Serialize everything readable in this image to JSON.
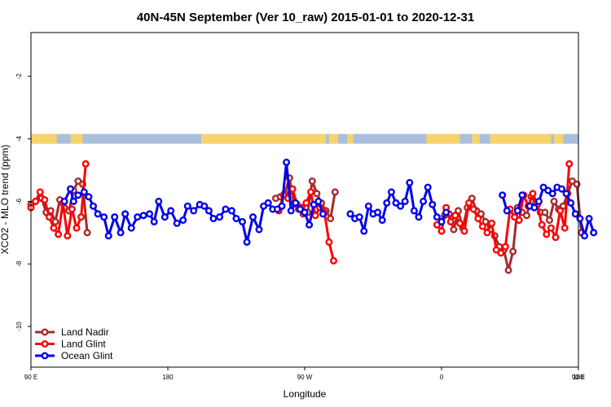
{
  "chart_data": {
    "type": "line",
    "title": "40N-45N September (Ver 10_raw)   2015-01-01 to 2020-12-31",
    "xlabel": "Longitude",
    "ylabel": "XCO2 - MLO trend (ppm)",
    "xlim": [
      90,
      450
    ],
    "ylim": [
      -11.3,
      -0.6
    ],
    "x_ticks": [
      {
        "value": 90,
        "label": "90 E"
      },
      {
        "value": 180,
        "label": "180"
      },
      {
        "value": 270,
        "label": "90 W"
      },
      {
        "value": 360,
        "label": "0"
      },
      {
        "value": 450,
        "label": "90 E"
      },
      {
        "value": 540,
        "label": "180"
      }
    ],
    "y_ticks": [
      {
        "value": -2,
        "label": "-2"
      },
      {
        "value": -4,
        "label": "-4"
      },
      {
        "value": -6,
        "label": "-6"
      },
      {
        "value": -8,
        "label": "-8"
      },
      {
        "value": -10,
        "label": "-10"
      }
    ],
    "grid": false,
    "legend_position": "bottom-left",
    "land_ocean_band": {
      "y_value": -4,
      "land_color": "#f7d46b",
      "ocean_color": "#a9bfdd",
      "land_segments": [
        [
          90,
          107
        ],
        [
          116,
          124
        ],
        [
          202,
          284
        ],
        [
          286,
          292
        ],
        [
          298,
          302
        ],
        [
          350,
          372
        ],
        [
          380,
          385
        ],
        [
          392,
          432
        ],
        [
          434,
          440
        ]
      ]
    },
    "series": [
      {
        "name": "Land Nadir",
        "color": "#a52a2a",
        "segments": [
          [
            [
              90,
              -6.1
            ],
            [
              93,
              -6.0
            ],
            [
              97,
              -5.9
            ],
            [
              100,
              -6.35
            ],
            [
              103,
              -6.3
            ],
            [
              106,
              -6.65
            ],
            [
              109,
              -5.95
            ],
            [
              112,
              -6.2
            ],
            [
              115,
              -6.3
            ],
            [
              118,
              -5.65
            ],
            [
              121,
              -5.35
            ],
            [
              124,
              -5.45
            ],
            [
              127,
              -7.0
            ]
          ],
          [
            [
              251,
              -5.9
            ],
            [
              254,
              -5.85
            ],
            [
              257,
              -5.75
            ],
            [
              260,
              -5.25
            ],
            [
              263,
              -6.05
            ],
            [
              266,
              -6.25
            ],
            [
              269,
              -6.4
            ],
            [
              272,
              -6.35
            ],
            [
              275,
              -5.35
            ],
            [
              278,
              -5.75
            ],
            [
              281,
              -6.05
            ],
            [
              284,
              -6.3
            ],
            [
              287,
              -6.55
            ],
            [
              290,
              -5.7
            ]
          ],
          [
            [
              362,
              -6.45
            ],
            [
              365,
              -6.4
            ],
            [
              368,
              -6.9
            ],
            [
              371,
              -6.3
            ],
            [
              374,
              -6.85
            ],
            [
              377,
              -6.2
            ],
            [
              380,
              -5.9
            ],
            [
              383,
              -6.3
            ],
            [
              386,
              -6.4
            ],
            [
              389,
              -6.65
            ],
            [
              392,
              -6.9
            ],
            [
              395,
              -7.1
            ],
            [
              398,
              -7.45
            ],
            [
              401,
              -7.55
            ],
            [
              404,
              -8.2
            ],
            [
              407,
              -7.6
            ],
            [
              410,
              -6.2
            ],
            [
              413,
              -6.35
            ],
            [
              416,
              -6.45
            ],
            [
              419,
              -5.85
            ],
            [
              422,
              -6.05
            ],
            [
              425,
              -6.35
            ],
            [
              428,
              -6.35
            ],
            [
              431,
              -6.6
            ],
            [
              434,
              -6.0
            ],
            [
              437,
              -6.25
            ],
            [
              440,
              -6.15
            ],
            [
              443,
              -5.75
            ],
            [
              446,
              -5.35
            ],
            [
              449,
              -5.45
            ],
            [
              452,
              -7.0
            ]
          ]
        ]
      },
      {
        "name": "Land Glint",
        "color": "#ff0000",
        "segments": [
          [
            [
              90,
              -6.2
            ],
            [
              93,
              -6.0
            ],
            [
              96,
              -5.7
            ],
            [
              99,
              -5.95
            ],
            [
              102,
              -6.5
            ],
            [
              105,
              -6.85
            ],
            [
              108,
              -7.05
            ],
            [
              111,
              -6.05
            ],
            [
              114,
              -7.1
            ],
            [
              117,
              -6.25
            ],
            [
              120,
              -6.85
            ],
            [
              123,
              -6.5
            ],
            [
              126,
              -4.8
            ]
          ],
          [
            [
              253,
              -6.3
            ],
            [
              256,
              -5.8
            ],
            [
              259,
              -5.9
            ],
            [
              262,
              -5.6
            ],
            [
              265,
              -6.1
            ],
            [
              268,
              -6.2
            ],
            [
              271,
              -6.05
            ],
            [
              274,
              -5.7
            ],
            [
              277,
              -6.45
            ],
            [
              280,
              -6.2
            ],
            [
              283,
              -6.35
            ],
            [
              286,
              -7.3
            ],
            [
              289,
              -7.9
            ]
          ],
          [
            [
              357,
              -6.75
            ],
            [
              360,
              -6.95
            ],
            [
              363,
              -6.2
            ],
            [
              366,
              -6.65
            ],
            [
              369,
              -6.45
            ],
            [
              372,
              -6.7
            ],
            [
              375,
              -6.95
            ],
            [
              378,
              -6.05
            ],
            [
              381,
              -6.25
            ],
            [
              384,
              -6.55
            ],
            [
              387,
              -6.8
            ],
            [
              390,
              -7.0
            ],
            [
              393,
              -6.7
            ],
            [
              396,
              -7.55
            ],
            [
              399,
              -7.65
            ],
            [
              402,
              -7.45
            ],
            [
              405,
              -6.25
            ],
            [
              408,
              -6.5
            ],
            [
              411,
              -6.6
            ],
            [
              414,
              -5.8
            ],
            [
              417,
              -6.15
            ],
            [
              420,
              -5.75
            ],
            [
              423,
              -6.1
            ],
            [
              426,
              -6.75
            ],
            [
              429,
              -7.05
            ],
            [
              432,
              -6.85
            ],
            [
              435,
              -7.15
            ],
            [
              438,
              -6.3
            ],
            [
              441,
              -6.85
            ],
            [
              444,
              -4.8
            ]
          ]
        ]
      },
      {
        "name": "Ocean Glint",
        "color": "#0000ee",
        "segments": [
          [
            [
              112,
              -6.0
            ],
            [
              116,
              -5.6
            ],
            [
              118,
              -6.0
            ],
            [
              121,
              -5.8
            ],
            [
              125,
              -5.7
            ],
            [
              128,
              -5.85
            ],
            [
              131,
              -6.15
            ],
            [
              134,
              -6.4
            ],
            [
              138,
              -6.5
            ],
            [
              141,
              -7.1
            ],
            [
              145,
              -6.5
            ],
            [
              149,
              -7.0
            ],
            [
              152,
              -6.4
            ],
            [
              156,
              -6.85
            ],
            [
              160,
              -6.5
            ],
            [
              164,
              -6.45
            ],
            [
              168,
              -6.4
            ],
            [
              171,
              -6.65
            ],
            [
              174,
              -6.0
            ],
            [
              178,
              -6.5
            ],
            [
              182,
              -6.3
            ],
            [
              186,
              -6.7
            ],
            [
              190,
              -6.6
            ],
            [
              193,
              -6.15
            ],
            [
              197,
              -6.3
            ],
            [
              201,
              -6.1
            ],
            [
              204,
              -6.15
            ],
            [
              207,
              -6.3
            ],
            [
              210,
              -6.55
            ],
            [
              214,
              -6.5
            ],
            [
              218,
              -6.25
            ],
            [
              222,
              -6.3
            ],
            [
              225,
              -6.55
            ],
            [
              229,
              -6.65
            ],
            [
              232,
              -7.3
            ],
            [
              236,
              -6.5
            ],
            [
              240,
              -6.9
            ],
            [
              243,
              -6.15
            ],
            [
              246,
              -6.05
            ],
            [
              249,
              -6.25
            ],
            [
              252,
              -6.25
            ],
            [
              255,
              -6.15
            ],
            [
              258,
              -4.75
            ],
            [
              261,
              -6.3
            ],
            [
              264,
              -6.05
            ],
            [
              267,
              -6.25
            ],
            [
              270,
              -6.35
            ],
            [
              273,
              -6.75
            ],
            [
              276,
              -6.1
            ],
            [
              279,
              -6.0
            ],
            [
              282,
              -6.4
            ]
          ],
          [
            [
              300,
              -6.4
            ],
            [
              303,
              -6.55
            ],
            [
              306,
              -6.5
            ],
            [
              309,
              -6.95
            ],
            [
              312,
              -6.15
            ],
            [
              315,
              -6.4
            ],
            [
              318,
              -6.35
            ],
            [
              321,
              -6.6
            ],
            [
              324,
              -6.05
            ],
            [
              327,
              -5.7
            ],
            [
              330,
              -6.05
            ],
            [
              333,
              -6.15
            ],
            [
              336,
              -6.0
            ],
            [
              339,
              -5.4
            ],
            [
              342,
              -6.3
            ],
            [
              345,
              -6.5
            ],
            [
              348,
              -6.0
            ],
            [
              351,
              -5.55
            ],
            [
              354,
              -6.1
            ],
            [
              357,
              -6.5
            ],
            [
              360,
              -6.65
            ],
            [
              363,
              -6.35
            ]
          ],
          [
            [
              400,
              -5.8
            ],
            [
              403,
              -6.3
            ]
          ],
          [
            [
              410,
              -6.3
            ],
            [
              413,
              -5.8
            ]
          ],
          [
            [
              418,
              -6.15
            ],
            [
              421,
              -6.2
            ],
            [
              424,
              -6.0
            ],
            [
              427,
              -5.55
            ],
            [
              430,
              -5.65
            ],
            [
              433,
              -5.75
            ],
            [
              436,
              -5.55
            ],
            [
              439,
              -5.6
            ],
            [
              442,
              -5.75
            ],
            [
              445,
              -6.05
            ],
            [
              448,
              -6.4
            ],
            [
              451,
              -6.55
            ],
            [
              454,
              -7.1
            ],
            [
              457,
              -6.55
            ],
            [
              460,
              -7.0
            ]
          ]
        ]
      }
    ]
  }
}
